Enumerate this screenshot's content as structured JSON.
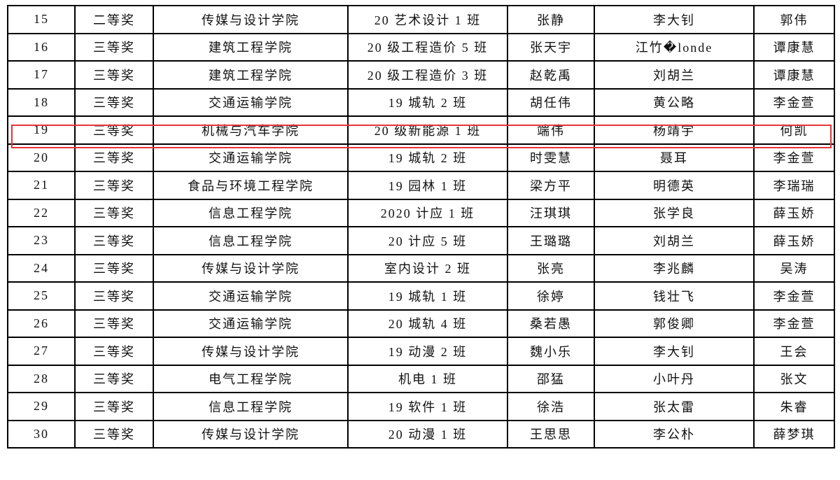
{
  "highlight_color": "#e8333a",
  "highlighted_row_no": "19",
  "rows": [
    [
      "15",
      "二等奖",
      "传媒与设计学院",
      "20 艺术设计 1 班",
      "张静",
      "李大钊",
      "郭伟"
    ],
    [
      "16",
      "三等奖",
      "建筑工程学院",
      "20 级工程造价 5 班",
      "张天宇",
      "江竹�londe",
      "谭康慧"
    ],
    [
      "17",
      "三等奖",
      "建筑工程学院",
      "20 级工程造价 3 班",
      "赵乾禹",
      "刘胡兰",
      "谭康慧"
    ],
    [
      "18",
      "三等奖",
      "交通运输学院",
      "19 城轨 2 班",
      "胡任伟",
      "黄公略",
      "李金萱"
    ],
    [
      "19",
      "三等奖",
      "机械与汽车学院",
      "20 级新能源 1 班",
      "端伟",
      "杨靖宇",
      "何凯"
    ],
    [
      "20",
      "三等奖",
      "交通运输学院",
      "19 城轨 2 班",
      "时雯慧",
      "聂耳",
      "李金萱"
    ],
    [
      "21",
      "三等奖",
      "食品与环境工程学院",
      "19 园林 1 班",
      "梁方平",
      "明德英",
      "李瑞瑞"
    ],
    [
      "22",
      "三等奖",
      "信息工程学院",
      "2020 计应 1 班",
      "汪琪琪",
      "张学良",
      "薛玉娇"
    ],
    [
      "23",
      "三等奖",
      "信息工程学院",
      "20 计应 5 班",
      "王璐璐",
      "刘胡兰",
      "薛玉娇"
    ],
    [
      "24",
      "三等奖",
      "传媒与设计学院",
      "室内设计 2 班",
      "张亮",
      "李兆麟",
      "吴涛"
    ],
    [
      "25",
      "三等奖",
      "交通运输学院",
      "19 城轨 1 班",
      "徐婷",
      "钱壮飞",
      "李金萱"
    ],
    [
      "26",
      "三等奖",
      "交通运输学院",
      "20 城轨 4 班",
      "桑若愚",
      "郭俊卿",
      "李金萱"
    ],
    [
      "27",
      "三等奖",
      "传媒与设计学院",
      "19 动漫 2 班",
      "魏小乐",
      "李大钊",
      "王会"
    ],
    [
      "28",
      "三等奖",
      "电气工程学院",
      "机电 1 班",
      "邵猛",
      "小叶丹",
      "张文"
    ],
    [
      "29",
      "三等奖",
      "信息工程学院",
      "19 软件 1 班",
      "徐浩",
      "张太雷",
      "朱睿"
    ],
    [
      "30",
      "三等奖",
      "传媒与设计学院",
      "20 动漫 1 班",
      "王思思",
      "李公朴",
      "薛梦琪"
    ]
  ]
}
